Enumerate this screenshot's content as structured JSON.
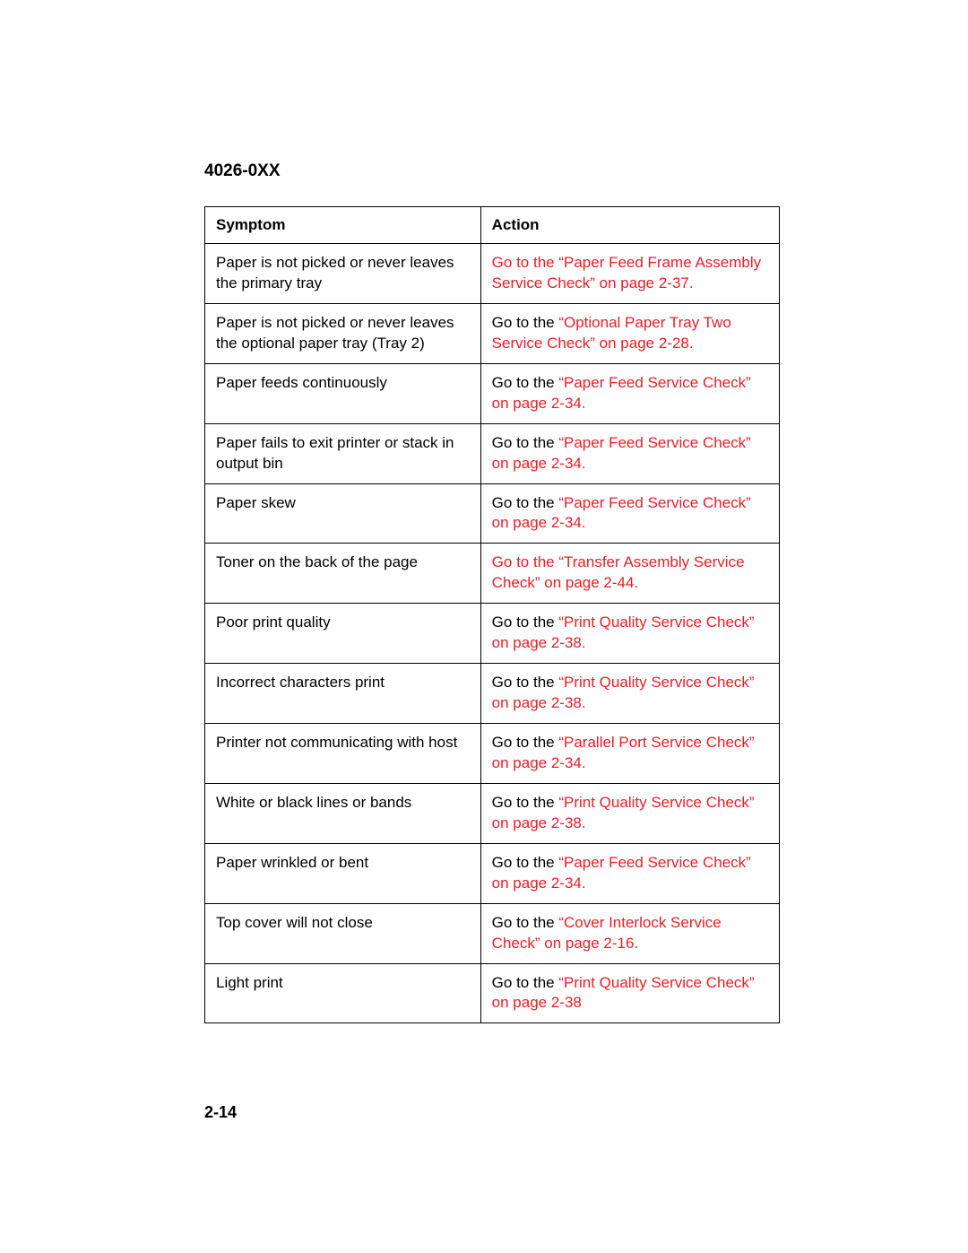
{
  "header": {
    "doc_id": "4026-0XX"
  },
  "table": {
    "columns": [
      "Symptom",
      "Action"
    ],
    "column_widths": [
      "48%",
      "52%"
    ],
    "rows": [
      {
        "symptom": "Paper is not picked or never leaves the primary tray",
        "action_prefix": "",
        "action_link": "Go to the “Paper Feed Frame Assembly Service Check” on page 2-37",
        "action_suffix": "."
      },
      {
        "symptom": "Paper is not picked or never leaves the optional paper tray (Tray 2)",
        "action_prefix": "Go to the ",
        "action_link": "“Optional Paper Tray Two Service Check” on page 2-28",
        "action_suffix": "."
      },
      {
        "symptom": "Paper feeds continuously",
        "action_prefix": "Go to the ",
        "action_link": "“Paper Feed Service Check” on page 2-34",
        "action_suffix": "."
      },
      {
        "symptom": "Paper fails to exit printer or stack in output bin",
        "action_prefix": "Go to the ",
        "action_link": "“Paper Feed Service Check” on page 2-34",
        "action_suffix": "."
      },
      {
        "symptom": "Paper skew",
        "action_prefix": "Go to the ",
        "action_link": "“Paper Feed Service Check” on page 2-34",
        "action_suffix": "."
      },
      {
        "symptom": "Toner on the back of the page",
        "action_prefix": "",
        "action_link": "Go to the “Transfer Assembly Service Check” on page 2-44",
        "action_suffix": "."
      },
      {
        "symptom": "Poor print quality",
        "action_prefix": "Go to the ",
        "action_link": "“Print Quality Service Check” on page 2-38",
        "action_suffix": "."
      },
      {
        "symptom": "Incorrect characters print",
        "action_prefix": "Go to the ",
        "action_link": "“Print Quality Service Check” on page 2-38",
        "action_suffix": "."
      },
      {
        "symptom": "Printer not communicating with host",
        "action_prefix": "Go to the ",
        "action_link": "“Parallel Port Service Check” on page 2-34",
        "action_suffix": "."
      },
      {
        "symptom": "White or black lines or bands",
        "action_prefix": "Go to the ",
        "action_link": "“Print Quality Service Check” on page 2-38",
        "action_suffix": "."
      },
      {
        "symptom": "Paper wrinkled or bent",
        "action_prefix": "Go to the ",
        "action_link": "“Paper Feed Service Check” on page 2-34",
        "action_suffix": "."
      },
      {
        "symptom": "Top cover will not close",
        "action_prefix": "Go to the ",
        "action_link": "“Cover Interlock Service Check” on page 2-16",
        "action_suffix": "."
      },
      {
        "symptom": "Light print",
        "action_prefix": "Go to the ",
        "action_link": "“Print Quality Service Check” on page 2-38",
        "action_suffix": ""
      }
    ],
    "link_color": "#ee1c25",
    "text_color": "#000000",
    "border_color": "#000000",
    "background_color": "#ffffff",
    "font_size": 17,
    "header_font_size": 17,
    "header_font_weight": "bold"
  },
  "footer": {
    "page_number": "2-14"
  }
}
